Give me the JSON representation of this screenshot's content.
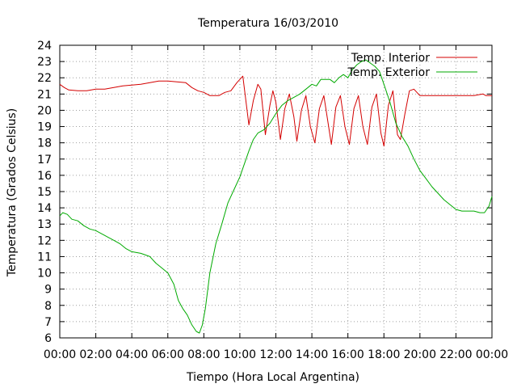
{
  "chart_data": {
    "type": "line",
    "title": "Temperatura 16/03/2010",
    "xlabel": "Tiempo (Hora Local Argentina)",
    "ylabel": "Temperatura (Grados Celsius)",
    "xlim": [
      "00:00",
      "24:00"
    ],
    "ylim": [
      6,
      24
    ],
    "grid": true,
    "legend_position": "top-right",
    "x_ticks": [
      "00:00",
      "02:00",
      "04:00",
      "06:00",
      "08:00",
      "10:00",
      "12:00",
      "14:00",
      "16:00",
      "18:00",
      "20:00",
      "22:00",
      "00:00"
    ],
    "y_ticks": [
      6,
      7,
      8,
      9,
      10,
      11,
      12,
      13,
      14,
      15,
      16,
      17,
      18,
      19,
      20,
      21,
      22,
      23,
      24
    ],
    "series": [
      {
        "name": "Temp. Interior",
        "color": "#d40000",
        "points": [
          [
            "00:00",
            21.6
          ],
          [
            "00:15",
            21.4
          ],
          [
            "00:30",
            21.25
          ],
          [
            "01:00",
            21.2
          ],
          [
            "01:30",
            21.2
          ],
          [
            "02:00",
            21.3
          ],
          [
            "02:30",
            21.3
          ],
          [
            "03:00",
            21.4
          ],
          [
            "03:30",
            21.5
          ],
          [
            "04:00",
            21.55
          ],
          [
            "04:30",
            21.6
          ],
          [
            "05:00",
            21.7
          ],
          [
            "05:30",
            21.8
          ],
          [
            "06:00",
            21.8
          ],
          [
            "06:30",
            21.75
          ],
          [
            "07:00",
            21.7
          ],
          [
            "07:20",
            21.4
          ],
          [
            "07:40",
            21.2
          ],
          [
            "08:00",
            21.1
          ],
          [
            "08:20",
            20.9
          ],
          [
            "08:50",
            20.9
          ],
          [
            "09:10",
            21.1
          ],
          [
            "09:30",
            21.2
          ],
          [
            "09:50",
            21.7
          ],
          [
            "10:10",
            22.1
          ],
          [
            "10:30",
            19.1
          ],
          [
            "10:45",
            20.6
          ],
          [
            "11:00",
            21.6
          ],
          [
            "11:10",
            21.3
          ],
          [
            "11:25",
            18.5
          ],
          [
            "11:40",
            20.3
          ],
          [
            "11:50",
            21.2
          ],
          [
            "12:00",
            20.5
          ],
          [
            "12:15",
            18.2
          ],
          [
            "12:30",
            20.1
          ],
          [
            "12:45",
            21.0
          ],
          [
            "13:00",
            19.6
          ],
          [
            "13:10",
            18.1
          ],
          [
            "13:25",
            20.0
          ],
          [
            "13:40",
            20.9
          ],
          [
            "13:55",
            19.0
          ],
          [
            "14:10",
            18.0
          ],
          [
            "14:25",
            20.1
          ],
          [
            "14:40",
            20.9
          ],
          [
            "14:55",
            19.1
          ],
          [
            "15:05",
            17.9
          ],
          [
            "15:20",
            20.2
          ],
          [
            "15:35",
            20.9
          ],
          [
            "15:50",
            19.0
          ],
          [
            "16:05",
            17.9
          ],
          [
            "16:20",
            20.1
          ],
          [
            "16:35",
            20.9
          ],
          [
            "16:50",
            19.0
          ],
          [
            "17:05",
            17.9
          ],
          [
            "17:20",
            20.2
          ],
          [
            "17:35",
            21.0
          ],
          [
            "17:50",
            18.6
          ],
          [
            "18:00",
            17.8
          ],
          [
            "18:15",
            20.3
          ],
          [
            "18:30",
            21.2
          ],
          [
            "18:45",
            18.5
          ],
          [
            "18:55",
            18.2
          ],
          [
            "19:10",
            19.8
          ],
          [
            "19:25",
            21.2
          ],
          [
            "19:40",
            21.3
          ],
          [
            "20:00",
            20.9
          ],
          [
            "21:00",
            20.9
          ],
          [
            "22:00",
            20.9
          ],
          [
            "23:00",
            20.9
          ],
          [
            "23:30",
            21.0
          ],
          [
            "23:40",
            20.9
          ],
          [
            "24:00",
            20.9
          ]
        ]
      },
      {
        "name": "Temp. Exterior",
        "color": "#00aa00",
        "points": [
          [
            "00:00",
            13.5
          ],
          [
            "00:10",
            13.7
          ],
          [
            "00:25",
            13.6
          ],
          [
            "00:40",
            13.3
          ],
          [
            "01:00",
            13.2
          ],
          [
            "01:20",
            12.9
          ],
          [
            "01:40",
            12.7
          ],
          [
            "02:00",
            12.6
          ],
          [
            "02:20",
            12.4
          ],
          [
            "02:40",
            12.2
          ],
          [
            "03:00",
            12.0
          ],
          [
            "03:20",
            11.8
          ],
          [
            "03:40",
            11.5
          ],
          [
            "04:00",
            11.3
          ],
          [
            "04:30",
            11.2
          ],
          [
            "05:00",
            11.0
          ],
          [
            "05:20",
            10.6
          ],
          [
            "05:40",
            10.3
          ],
          [
            "06:00",
            10.0
          ],
          [
            "06:20",
            9.3
          ],
          [
            "06:35",
            8.3
          ],
          [
            "06:50",
            7.8
          ],
          [
            "07:05",
            7.4
          ],
          [
            "07:20",
            6.8
          ],
          [
            "07:35",
            6.4
          ],
          [
            "07:45",
            6.3
          ],
          [
            "07:55",
            6.8
          ],
          [
            "08:05",
            7.8
          ],
          [
            "08:20",
            10.0
          ],
          [
            "08:40",
            11.8
          ],
          [
            "09:00",
            13.0
          ],
          [
            "09:20",
            14.3
          ],
          [
            "09:40",
            15.1
          ],
          [
            "10:00",
            15.9
          ],
          [
            "10:15",
            16.7
          ],
          [
            "10:30",
            17.5
          ],
          [
            "10:45",
            18.2
          ],
          [
            "11:00",
            18.6
          ],
          [
            "11:20",
            18.8
          ],
          [
            "11:40",
            19.2
          ],
          [
            "12:00",
            19.8
          ],
          [
            "12:20",
            20.3
          ],
          [
            "12:40",
            20.6
          ],
          [
            "13:00",
            20.8
          ],
          [
            "13:20",
            21.0
          ],
          [
            "13:40",
            21.3
          ],
          [
            "14:00",
            21.6
          ],
          [
            "14:15",
            21.5
          ],
          [
            "14:30",
            21.9
          ],
          [
            "15:00",
            21.9
          ],
          [
            "15:15",
            21.7
          ],
          [
            "15:30",
            22.0
          ],
          [
            "15:45",
            22.2
          ],
          [
            "16:00",
            22.0
          ],
          [
            "16:15",
            22.5
          ],
          [
            "16:30",
            22.8
          ],
          [
            "16:45",
            23.0
          ],
          [
            "17:00",
            23.1
          ],
          [
            "17:15",
            22.9
          ],
          [
            "17:30",
            22.7
          ],
          [
            "17:45",
            22.4
          ],
          [
            "18:00",
            21.6
          ],
          [
            "18:20",
            20.5
          ],
          [
            "18:40",
            19.2
          ],
          [
            "19:00",
            18.4
          ],
          [
            "19:20",
            17.8
          ],
          [
            "19:40",
            17.0
          ],
          [
            "20:00",
            16.3
          ],
          [
            "20:20",
            15.8
          ],
          [
            "20:40",
            15.3
          ],
          [
            "21:00",
            14.9
          ],
          [
            "21:20",
            14.5
          ],
          [
            "21:40",
            14.2
          ],
          [
            "22:00",
            13.9
          ],
          [
            "22:20",
            13.8
          ],
          [
            "22:40",
            13.8
          ],
          [
            "23:00",
            13.8
          ],
          [
            "23:20",
            13.7
          ],
          [
            "23:35",
            13.7
          ],
          [
            "23:50",
            14.1
          ],
          [
            "24:00",
            14.7
          ]
        ]
      }
    ]
  }
}
